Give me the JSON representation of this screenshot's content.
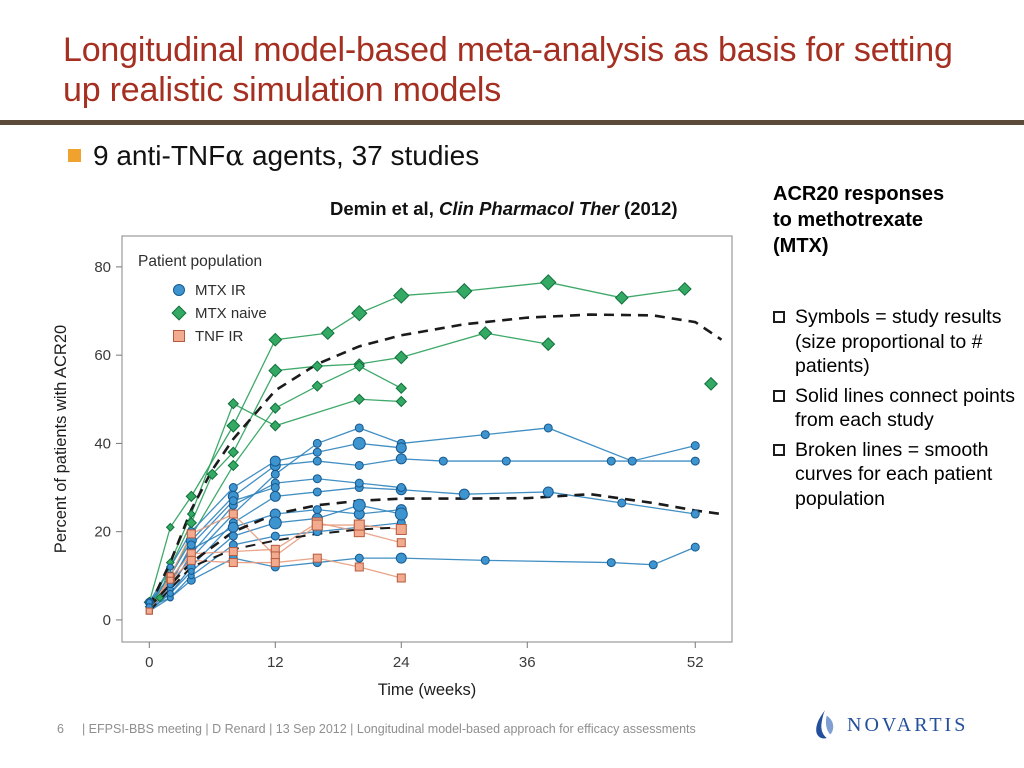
{
  "slide": {
    "title": "Longitudinal model-based meta-analysis as basis for setting up realistic simulation models",
    "bullet": {
      "prefix": "9 anti-TNF",
      "alpha": "α",
      "suffix": " agents, 37 studies"
    },
    "citation": {
      "prefix": "Demin et al, ",
      "journal": "Clin Pharmacol Ther",
      "suffix": " (2012)"
    },
    "side_panel": {
      "heading": "ACR20 responses to methotrexate (MTX)",
      "bullets": [
        "Symbols = study results (size proportional to # patients)",
        "Solid lines connect points from each study",
        "Broken lines = smooth curves for each patient population"
      ]
    },
    "footer": {
      "page": "6",
      "text": "| EFPSI-BBS meeting | D Renard | 13 Sep 2012 | Longitudinal model-based approach for efficacy assessments"
    },
    "logo": {
      "text": "NOVARTIS"
    },
    "colors": {
      "title": "#a52f21",
      "rule": "#5d4b3a",
      "bullet_square": "#efa32e",
      "footer": "#8f8f8f",
      "logo_blue": "#234f9b"
    }
  },
  "chart_data": {
    "type": "line",
    "title": "",
    "xlabel": "Time (weeks)",
    "ylabel": "Percent of patients with ACR20",
    "xlim": [
      -2.6,
      55.5
    ],
    "ylim": [
      -5,
      87
    ],
    "xticks": [
      0,
      12,
      24,
      36,
      52
    ],
    "yticks": [
      0,
      20,
      40,
      60,
      80
    ],
    "grid": false,
    "legend_title": "Patient population",
    "legend_position": "upper-left",
    "groups": [
      {
        "id": "mtx_ir",
        "label": "MTX IR",
        "marker": "circle",
        "line": "#2d83bd",
        "fill": "#3d94cf",
        "edge": "#16598f"
      },
      {
        "id": "mtx_naive",
        "label": "MTX naive",
        "marker": "diamond",
        "line": "#2aa05a",
        "fill": "#33a964",
        "edge": "#11703c"
      },
      {
        "id": "tnf_ir",
        "label": "TNF IR",
        "marker": "square",
        "line": "#e89b7e",
        "fill": "#f2ab8e",
        "edge": "#b65b40"
      }
    ],
    "series": [
      {
        "group": "mtx_naive",
        "points": [
          [
            0,
            4,
            4
          ],
          [
            2,
            21,
            3
          ],
          [
            4,
            28,
            4
          ],
          [
            8,
            44,
            5
          ],
          [
            12,
            63.5,
            5
          ],
          [
            17,
            65,
            5
          ],
          [
            20,
            69.5,
            6
          ],
          [
            24,
            73.5,
            6
          ],
          [
            30,
            74.5,
            6
          ],
          [
            38,
            76.5,
            6
          ],
          [
            45,
            73,
            5
          ],
          [
            51,
            75,
            5
          ]
        ]
      },
      {
        "group": "mtx_naive",
        "points": [
          [
            0,
            3,
            3
          ],
          [
            2,
            12,
            3
          ],
          [
            4,
            22,
            4
          ],
          [
            6,
            33,
            4
          ],
          [
            8,
            38,
            4
          ],
          [
            12,
            56.5,
            5
          ],
          [
            16,
            57.5,
            4
          ],
          [
            20,
            58,
            4
          ],
          [
            24,
            59.5,
            5
          ],
          [
            32,
            65,
            5
          ],
          [
            38,
            62.5,
            5
          ]
        ]
      },
      {
        "group": "mtx_naive",
        "points": [
          [
            0,
            3,
            3
          ],
          [
            2,
            10,
            3
          ],
          [
            4,
            19,
            3
          ],
          [
            8,
            35,
            4
          ],
          [
            12,
            48,
            4
          ],
          [
            16,
            53,
            4
          ],
          [
            20,
            57.5,
            4
          ],
          [
            24,
            52.5,
            4
          ]
        ]
      },
      {
        "group": "mtx_naive",
        "points": [
          [
            1,
            5,
            3
          ],
          [
            2,
            13,
            3
          ],
          [
            4,
            24,
            3
          ],
          [
            8,
            49,
            4
          ],
          [
            12,
            44,
            4
          ],
          [
            20,
            50,
            4
          ],
          [
            24,
            49.5,
            4
          ]
        ]
      },
      {
        "group": "mtx_naive",
        "points": [
          [
            53.5,
            53.5,
            5
          ]
        ]
      },
      {
        "group": "mtx_ir",
        "points": [
          [
            0,
            3,
            3
          ],
          [
            2,
            8,
            3
          ],
          [
            4,
            14,
            3
          ],
          [
            8,
            24,
            4
          ],
          [
            12,
            33,
            4
          ],
          [
            16,
            40,
            4
          ],
          [
            20,
            43.5,
            4
          ],
          [
            24,
            40,
            4
          ],
          [
            32,
            42,
            4
          ],
          [
            38,
            43.5,
            4
          ],
          [
            46,
            36,
            4
          ],
          [
            52,
            39.5,
            4
          ]
        ]
      },
      {
        "group": "mtx_ir",
        "points": [
          [
            0,
            4,
            4
          ],
          [
            2,
            10,
            4
          ],
          [
            4,
            18,
            5
          ],
          [
            8,
            28,
            5
          ],
          [
            12,
            35,
            5
          ],
          [
            16,
            36,
            4
          ],
          [
            20,
            35,
            4
          ],
          [
            24,
            36.5,
            5
          ],
          [
            28,
            36,
            4
          ],
          [
            34,
            36,
            4
          ],
          [
            44,
            36,
            4
          ],
          [
            52,
            36,
            4
          ]
        ]
      },
      {
        "group": "mtx_ir",
        "points": [
          [
            0,
            2,
            3
          ],
          [
            2,
            6,
            3
          ],
          [
            4,
            12,
            4
          ],
          [
            8,
            22,
            4
          ],
          [
            12,
            28,
            5
          ],
          [
            16,
            29,
            4
          ],
          [
            20,
            30,
            4
          ],
          [
            24,
            29.5,
            5
          ],
          [
            30,
            28.5,
            5
          ],
          [
            38,
            29,
            5
          ],
          [
            45,
            26.5,
            4
          ],
          [
            52,
            24,
            4
          ]
        ]
      },
      {
        "group": "mtx_ir",
        "points": [
          [
            0,
            3,
            3
          ],
          [
            2,
            5,
            3
          ],
          [
            4,
            9,
            4
          ],
          [
            8,
            14,
            4
          ],
          [
            12,
            12,
            4
          ],
          [
            16,
            13,
            4
          ],
          [
            20,
            14,
            4
          ],
          [
            24,
            14,
            5
          ],
          [
            32,
            13.5,
            4
          ],
          [
            44,
            13,
            4
          ],
          [
            48,
            12.5,
            4
          ],
          [
            52,
            16.5,
            4
          ]
        ]
      },
      {
        "group": "mtx_ir",
        "points": [
          [
            0,
            4,
            3
          ],
          [
            2,
            9,
            3
          ],
          [
            4,
            16,
            4
          ],
          [
            8,
            21,
            5
          ],
          [
            12,
            24,
            5
          ],
          [
            16,
            25,
            4
          ],
          [
            20,
            24,
            5
          ],
          [
            24,
            25,
            5
          ]
        ]
      },
      {
        "group": "mtx_ir",
        "points": [
          [
            0,
            3,
            3
          ],
          [
            2,
            7,
            3
          ],
          [
            4,
            15,
            3
          ],
          [
            8,
            26,
            4
          ],
          [
            12,
            31,
            4
          ],
          [
            16,
            32,
            4
          ],
          [
            20,
            31,
            4
          ],
          [
            24,
            30,
            4
          ]
        ]
      },
      {
        "group": "mtx_ir",
        "points": [
          [
            0,
            4,
            3
          ],
          [
            2,
            12,
            3
          ],
          [
            4,
            20,
            4
          ],
          [
            8,
            30,
            4
          ],
          [
            12,
            36,
            5
          ],
          [
            16,
            38,
            4
          ],
          [
            20,
            40,
            6
          ],
          [
            24,
            39,
            5
          ]
        ]
      },
      {
        "group": "mtx_ir",
        "points": [
          [
            0,
            3,
            3
          ],
          [
            2,
            8,
            3
          ],
          [
            4,
            17,
            4
          ],
          [
            8,
            27,
            4
          ],
          [
            12,
            30,
            4
          ]
        ]
      },
      {
        "group": "mtx_ir",
        "points": [
          [
            0,
            2,
            3
          ],
          [
            2,
            5,
            3
          ],
          [
            4,
            10,
            3
          ],
          [
            8,
            17,
            4
          ],
          [
            12,
            19,
            4
          ],
          [
            16,
            20,
            4
          ],
          [
            20,
            21,
            4
          ],
          [
            24,
            22,
            4
          ]
        ]
      },
      {
        "group": "mtx_ir",
        "points": [
          [
            0,
            3,
            3
          ],
          [
            2,
            6,
            3
          ],
          [
            4,
            11,
            3
          ],
          [
            8,
            19,
            4
          ],
          [
            12,
            22,
            6
          ],
          [
            16,
            23,
            5
          ],
          [
            20,
            26,
            6
          ],
          [
            24,
            24,
            6
          ]
        ]
      },
      {
        "group": "tnf_ir",
        "points": [
          [
            0,
            2,
            3
          ],
          [
            2,
            9.5,
            4
          ],
          [
            4,
            15,
            4
          ],
          [
            8,
            15.5,
            4
          ],
          [
            12,
            16,
            4
          ],
          [
            16,
            22,
            5
          ],
          [
            20,
            20,
            5
          ],
          [
            24,
            17.5,
            4
          ]
        ]
      },
      {
        "group": "tnf_ir",
        "points": [
          [
            0,
            2,
            3
          ],
          [
            2,
            10,
            3
          ],
          [
            4,
            19.5,
            4
          ],
          [
            8,
            24,
            4
          ],
          [
            12,
            14.5,
            4
          ],
          [
            16,
            21.5,
            5
          ],
          [
            20,
            21.5,
            5
          ],
          [
            24,
            20.5,
            5
          ]
        ]
      },
      {
        "group": "tnf_ir",
        "points": [
          [
            0,
            2,
            3
          ],
          [
            2,
            9,
            3
          ],
          [
            4,
            13.5,
            4
          ],
          [
            8,
            13,
            4
          ],
          [
            12,
            13,
            4
          ],
          [
            16,
            14,
            4
          ],
          [
            20,
            12,
            4
          ],
          [
            24,
            9.5,
            4
          ]
        ]
      }
    ],
    "smooth_curves": [
      {
        "group": "mtx_naive",
        "points": [
          [
            0,
            3
          ],
          [
            2,
            13
          ],
          [
            4,
            25
          ],
          [
            6,
            34
          ],
          [
            8,
            41
          ],
          [
            12,
            52
          ],
          [
            16,
            58
          ],
          [
            20,
            62
          ],
          [
            24,
            64.5
          ],
          [
            30,
            67
          ],
          [
            36,
            68.5
          ],
          [
            42,
            69.2
          ],
          [
            48,
            69
          ],
          [
            52,
            67.5
          ],
          [
            54.5,
            63.5
          ]
        ]
      },
      {
        "group": "mtx_ir",
        "points": [
          [
            0,
            3
          ],
          [
            2,
            8
          ],
          [
            4,
            13
          ],
          [
            8,
            20
          ],
          [
            12,
            24
          ],
          [
            16,
            26
          ],
          [
            20,
            27
          ],
          [
            24,
            27.5
          ],
          [
            30,
            27.5
          ],
          [
            36,
            27.6
          ],
          [
            42,
            28.5
          ],
          [
            48,
            26.5
          ],
          [
            52,
            24.8
          ],
          [
            54.5,
            24
          ]
        ]
      },
      {
        "group": "tnf_ir",
        "points": [
          [
            0,
            2
          ],
          [
            2,
            7
          ],
          [
            4,
            12
          ],
          [
            8,
            16
          ],
          [
            12,
            18
          ],
          [
            16,
            19.5
          ],
          [
            20,
            20.5
          ],
          [
            24,
            21
          ]
        ]
      }
    ]
  }
}
